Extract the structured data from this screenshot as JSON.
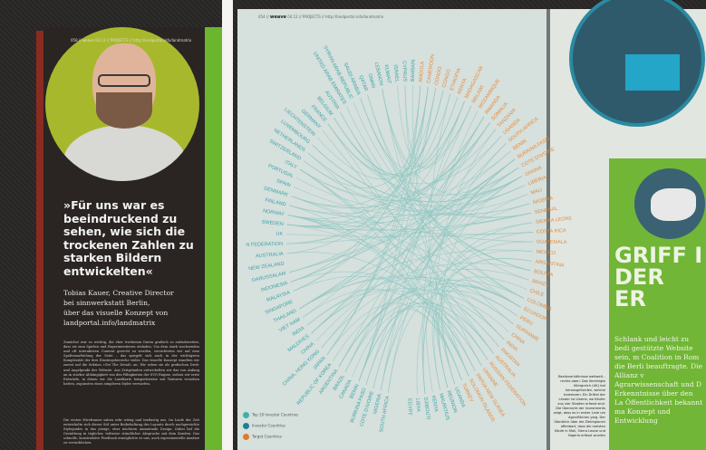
{
  "left_page": {
    "header": "058 // weave 04.12 // PROJECTS // http://landportal.info/landmatrix",
    "quote": "»Für uns war es beeindruckend zu sehen, wie sich die trockenen Zahlen zu starken Bildern entwickelten«",
    "byline": [
      "Tobias Kauer, Creative Director",
      "bei sinnwerkstatt Berlin,",
      "über das visuelle Konzept von",
      "landportal.info/landmatrix"
    ],
    "body": [
      "Zunächst war es wichtig, die eher trockenen Daten grafisch so aufzubereiten, dass sie zum Spielen und Experimentieren einladen. Um dem stark wachsenden und oft interaktiven Content gerecht zu werden, verzichteten wir auf eine Spaltenaufteilung der Seite – das spiegelt sich auch in der wichtigsten Komplexität der drei Einstiegsbereiche wider. Das visuelle Konzept wandten wir zuerst auf die Sektion »Get The Detail« an. Wir sehen sie als grafischen Dreh- und Angelpunkt der Website. Aus Zeitgründen entwickelten wir das von Anfang an in starker Abhängigkeit von den Fähigkeiten der SVG-Engine, sodass wir erste Entwürfe, in denen wir die Landkarte beispielsweise mit Texturen versehen hatten, zugunsten eines simpleren Styles verwarfen.",
      "Die ersten Wireframes sahen sehr witzig und textlastig aus. Im Laufe der Zeit entwickelte sich dieser Stil unter Beibehaltung des Layouts durch nachgereichte Styleguides in das jetzige, eher nüchtern anmutende Design. Dabei lief die Gestaltung in täglicher, teilweise stündlicher Absprache mit dem Kunden. Das schnelle, konstruktive Feedback ermöglichte es uns, auch experimentelle Ansätze zu verwirklichen."
    ]
  },
  "spread": {
    "header_page": "054 //",
    "header_brand": "weave",
    "header_rest": "04.12 // PROJECTS // http://landportal.info/landmatrix",
    "legend": [
      {
        "label": "Top 10 Investor Countries",
        "color": "#3fb0a8"
      },
      {
        "label": "Investor Countries",
        "color": "#1f7f95"
      },
      {
        "label": "Target Countries",
        "color": "#e07a2a"
      }
    ],
    "colors": {
      "investor": "#3aa3a6",
      "target": "#e48a3c",
      "chord": "#8fc7c2"
    },
    "labels": [
      {
        "t": "SOUTH AFRICA",
        "k": "i"
      },
      {
        "t": "NIGERIA",
        "k": "i"
      },
      {
        "t": "COTE D'IVOIRE",
        "k": "i"
      },
      {
        "t": "BURKINA FASO",
        "k": "i"
      },
      {
        "t": "BENIN",
        "k": "i"
      },
      {
        "t": "CANADA",
        "k": "i"
      },
      {
        "t": "BRAZIL",
        "k": "i"
      },
      {
        "t": "ARGENTINA",
        "k": "i"
      },
      {
        "t": "REPUBLIC OF KOREA",
        "k": "i"
      },
      {
        "t": "JAPAN",
        "k": "i"
      },
      {
        "t": "CHINA, HONG KONG",
        "k": "i"
      },
      {
        "t": "CHINA",
        "k": "i"
      },
      {
        "t": "MALDIVES",
        "k": "i"
      },
      {
        "t": "INDIA",
        "k": "i"
      },
      {
        "t": "VIET NAM",
        "k": "i"
      },
      {
        "t": "THAILAND",
        "k": "i"
      },
      {
        "t": "SINGAPORE",
        "k": "i"
      },
      {
        "t": "MALAYSIA",
        "k": "i"
      },
      {
        "t": "INDONESIA",
        "k": "i"
      },
      {
        "t": "DARUSSALAM",
        "k": "i"
      },
      {
        "t": "NEW ZEALAND",
        "k": "i"
      },
      {
        "t": "AUSTRALIA",
        "k": "i"
      },
      {
        "t": "N FEDERATION",
        "k": "i"
      },
      {
        "t": "UK",
        "k": "i"
      },
      {
        "t": "SWEDEN",
        "k": "i"
      },
      {
        "t": "NORWAY",
        "k": "i"
      },
      {
        "t": "FINLAND",
        "k": "i"
      },
      {
        "t": "DENMARK",
        "k": "i"
      },
      {
        "t": "SPAIN",
        "k": "i"
      },
      {
        "t": "PORTUGAL",
        "k": "i"
      },
      {
        "t": "ITALY",
        "k": "i"
      },
      {
        "t": "SWITZERLAND",
        "k": "i"
      },
      {
        "t": "NETHERLANDS",
        "k": "i"
      },
      {
        "t": "LUXEMBOURG",
        "k": "i"
      },
      {
        "t": "LIECHTENSTEIN",
        "k": "i"
      },
      {
        "t": "GERMANY",
        "k": "i"
      },
      {
        "t": "FRANCE",
        "k": "i"
      },
      {
        "t": "BELGIUM",
        "k": "i"
      },
      {
        "t": "AUSTRIA",
        "k": "i"
      },
      {
        "t": "UNITED ARAB EMIRATES",
        "k": "i"
      },
      {
        "t": "SYRIAN ARAB REPUBLIC",
        "k": "i"
      },
      {
        "t": "SAUDI ARABIA",
        "k": "i"
      },
      {
        "t": "QATAR",
        "k": "i"
      },
      {
        "t": "OMAN",
        "k": "i"
      },
      {
        "t": "LEBANON",
        "k": "i"
      },
      {
        "t": "KUWAIT",
        "k": "i"
      },
      {
        "t": "ISRAEL",
        "k": "i"
      },
      {
        "t": "CYPRUS",
        "k": "i"
      },
      {
        "t": "BAHRAIN",
        "k": "i"
      },
      {
        "t": "ANGOLA",
        "k": "t"
      },
      {
        "t": "CAMEROON",
        "k": "t"
      },
      {
        "t": "CONGO",
        "k": "t"
      },
      {
        "t": "CONGO",
        "k": "t"
      },
      {
        "t": "ETHIOPIA",
        "k": "t"
      },
      {
        "t": "KENYA",
        "k": "t"
      },
      {
        "t": "MADAGASCAR",
        "k": "t"
      },
      {
        "t": "MALAWI",
        "k": "t"
      },
      {
        "t": "MOZAMBIQUE",
        "k": "t"
      },
      {
        "t": "RWANDA",
        "k": "t"
      },
      {
        "t": "SOMALIA",
        "k": "t"
      },
      {
        "t": "TANZANIA",
        "k": "t"
      },
      {
        "t": "UGANDA",
        "k": "t"
      },
      {
        "t": "SOUTH AFRICA",
        "k": "t"
      },
      {
        "t": "BENIN",
        "k": "t"
      },
      {
        "t": "BURKINA FASO",
        "k": "t"
      },
      {
        "t": "COTE D'IVOIRE",
        "k": "t"
      },
      {
        "t": "GHANA",
        "k": "t"
      },
      {
        "t": "LIBERIA",
        "k": "t"
      },
      {
        "t": "MALI",
        "k": "t"
      },
      {
        "t": "NIGERIA",
        "k": "t"
      },
      {
        "t": "SENEGAL",
        "k": "t"
      },
      {
        "t": "SIERRA LEONE",
        "k": "t"
      },
      {
        "t": "COSTA RICA",
        "k": "t"
      },
      {
        "t": "GUATEMALA",
        "k": "t"
      },
      {
        "t": "MEXICO",
        "k": "t"
      },
      {
        "t": "ARGENTINA",
        "k": "t"
      },
      {
        "t": "BOLIVIA",
        "k": "t"
      },
      {
        "t": "BRAZIL",
        "k": "t"
      },
      {
        "t": "CHILE",
        "k": "t"
      },
      {
        "t": "COLOMBIA",
        "k": "t"
      },
      {
        "t": "ECUADOR",
        "k": "t"
      },
      {
        "t": "PERU",
        "k": "t"
      },
      {
        "t": "SURINAME",
        "k": "t"
      },
      {
        "t": "CHINA",
        "k": "t"
      },
      {
        "t": "INDIA",
        "k": "t"
      },
      {
        "t": "PAKISTAN",
        "k": "t"
      },
      {
        "t": "AUSTRALIA",
        "k": "t"
      },
      {
        "t": "RUSSIAN FEDERATION",
        "k": "t"
      },
      {
        "t": "UKRAINE",
        "k": "t"
      },
      {
        "t": "PAPUA NEW GUINEA",
        "k": "t"
      },
      {
        "t": "SOLOMON ISLANDS",
        "k": "t"
      },
      {
        "t": "TURKEY",
        "k": "t"
      },
      {
        "t": "UGANDA",
        "k": "i"
      },
      {
        "t": "REUNION",
        "k": "i"
      },
      {
        "t": "MAURITIUS",
        "k": "i"
      },
      {
        "t": "KENYA",
        "k": "i"
      },
      {
        "t": "DJIBOUTI",
        "k": "i"
      },
      {
        "t": "LIBYA",
        "k": "i"
      },
      {
        "t": "EGYPT",
        "k": "i"
      }
    ]
  },
  "right_page": {
    "headline": [
      "GRIFF I",
      "DER ER"
    ],
    "body": [
      "Schlank und leicht zu bedi",
      "gestützte Website sein, m",
      "Coalition in Rom die Berli",
      "beauftragte. Die Allianz v",
      "Agrarwissenschaft und D",
      "Erkenntnisse über den La",
      "Öffentlichkeit bekannt ma",
      "Konzept und Entwicklung"
    ],
    "caption": "Besitzverhältnisse weltweit – rechts oben: Das Vereinigte Königreich (UK) hat herausgefunden, welche Investoren. Ein Drittel der Länder ist Liberia, wo Käufer aus vier Staaten erfasst sind. Die Übersicht der Investments zeigt, dass es in erster Linie um Agrarflächen ging. Der Überblick über die Zielregionen offenbart, dass die meisten Käufe in Mali, Sierra Leone und Nigeria erfasst wurden"
  }
}
